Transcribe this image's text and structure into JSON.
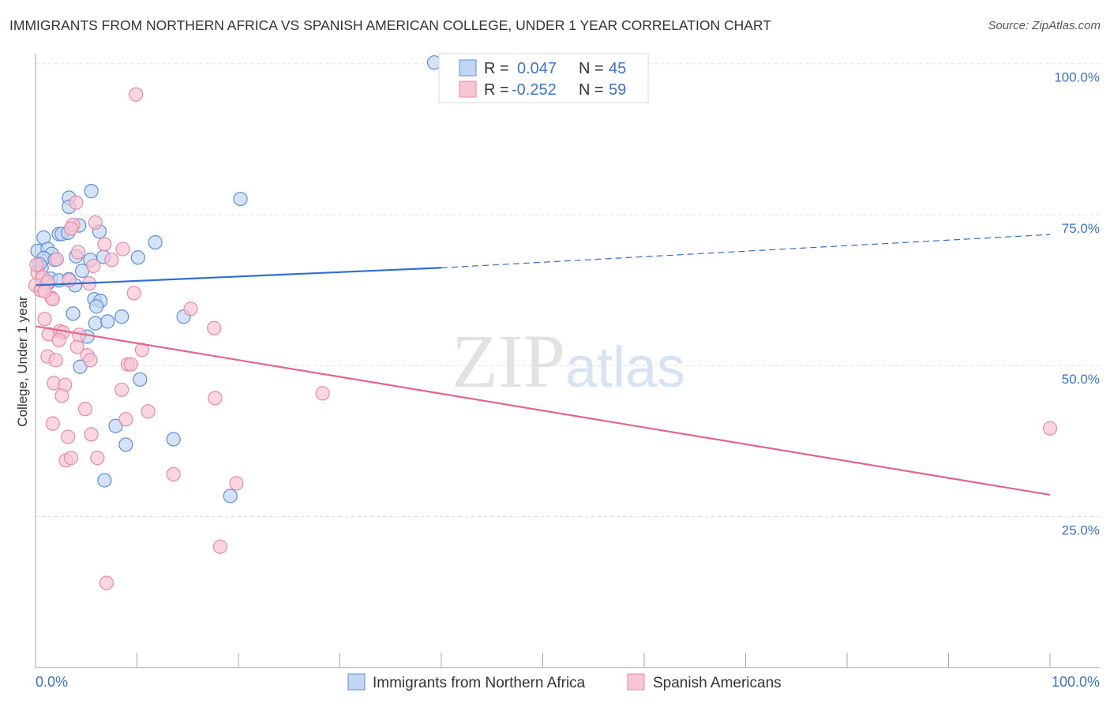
{
  "title": "IMMIGRANTS FROM NORTHERN AFRICA VS SPANISH AMERICAN COLLEGE, UNDER 1 YEAR CORRELATION CHART",
  "source": "Source: ZipAtlas.com",
  "watermark": "ZIPatlas",
  "chart_data": {
    "type": "scatter",
    "ylabel": "College, Under 1 year",
    "xlim": [
      0,
      100
    ],
    "ylim": [
      0,
      100
    ],
    "x_tick_labels": [
      "0.0%",
      "100.0%"
    ],
    "y_tick_labels": [
      {
        "v": 100,
        "label": "100.0%"
      },
      {
        "v": 75,
        "label": "75.0%"
      },
      {
        "v": 50,
        "label": "50.0%"
      },
      {
        "v": 25,
        "label": "25.0%"
      }
    ],
    "legend": [
      {
        "r_label": "R = ",
        "r": "0.047",
        "n_label": "N = ",
        "n": "45"
      },
      {
        "r_label": "R = ",
        "r": "-0.252",
        "n_label": "N = ",
        "n": "59"
      }
    ],
    "series": [
      {
        "name": "Immigrants from Northern Africa",
        "fill": "#c3d7f4",
        "stroke": "#5b8fdd",
        "line": "#2e6fd1",
        "trend": {
          "x0": 0,
          "y0": 63.3,
          "x1": 40,
          "y1": 66.2,
          "x_dash_end": 100,
          "y_dash_end": 71.7
        },
        "points": [
          [
            39.3,
            100.2
          ],
          [
            5.5,
            78.9
          ],
          [
            3.3,
            77.8
          ],
          [
            20.2,
            77.6
          ],
          [
            3.3,
            76.3
          ],
          [
            0.8,
            71.2
          ],
          [
            2.3,
            71.8
          ],
          [
            2.6,
            71.8
          ],
          [
            4.3,
            73.2
          ],
          [
            6.3,
            72.2
          ],
          [
            11.8,
            70.4
          ],
          [
            0.2,
            69.0
          ],
          [
            1.2,
            69.3
          ],
          [
            1.6,
            68.5
          ],
          [
            4.0,
            68.1
          ],
          [
            0.8,
            67.8
          ],
          [
            5.4,
            67.5
          ],
          [
            6.7,
            68.0
          ],
          [
            10.1,
            67.9
          ],
          [
            0.6,
            66.2
          ],
          [
            4.6,
            65.7
          ],
          [
            1.5,
            64.4
          ],
          [
            2.3,
            64.1
          ],
          [
            3.3,
            64.3
          ],
          [
            3.9,
            63.3
          ],
          [
            5.8,
            61.0
          ],
          [
            6.4,
            60.7
          ],
          [
            6.0,
            59.8
          ],
          [
            8.5,
            58.1
          ],
          [
            3.7,
            58.6
          ],
          [
            5.9,
            57.0
          ],
          [
            7.1,
            57.3
          ],
          [
            14.6,
            58.1
          ],
          [
            5.1,
            54.8
          ],
          [
            4.4,
            49.8
          ],
          [
            10.3,
            47.7
          ],
          [
            7.9,
            40.0
          ],
          [
            13.6,
            37.8
          ],
          [
            8.9,
            36.9
          ],
          [
            6.8,
            31.0
          ],
          [
            19.2,
            28.4
          ],
          [
            1.2,
            63.6
          ],
          [
            0.4,
            66.8
          ],
          [
            1.9,
            67.5
          ],
          [
            3.2,
            72.0
          ]
        ]
      },
      {
        "name": "Spanish Americans",
        "fill": "#f8c5d3",
        "stroke": "#e88aa8",
        "line": "#e5648e",
        "trend": {
          "x0": 0,
          "y0": 56.5,
          "x1": 100,
          "y1": 28.6
        },
        "points": [
          [
            9.9,
            94.9
          ],
          [
            4.0,
            77.0
          ],
          [
            5.9,
            73.7
          ],
          [
            3.7,
            73.3
          ],
          [
            3.5,
            72.7
          ],
          [
            6.8,
            70.1
          ],
          [
            4.2,
            68.8
          ],
          [
            8.6,
            69.3
          ],
          [
            7.5,
            67.5
          ],
          [
            2.1,
            67.6
          ],
          [
            5.7,
            66.5
          ],
          [
            0.2,
            65.4
          ],
          [
            0.7,
            64.6
          ],
          [
            1.2,
            63.9
          ],
          [
            3.3,
            64.1
          ],
          [
            5.3,
            63.6
          ],
          [
            0,
            63.3
          ],
          [
            1.6,
            61.2
          ],
          [
            1.7,
            61.0
          ],
          [
            9.7,
            62.0
          ],
          [
            15.3,
            59.4
          ],
          [
            0.9,
            57.7
          ],
          [
            17.6,
            56.2
          ],
          [
            1.3,
            55.2
          ],
          [
            2.4,
            55.7
          ],
          [
            2.7,
            55.5
          ],
          [
            2.3,
            54.2
          ],
          [
            4.1,
            53.1
          ],
          [
            10.5,
            52.6
          ],
          [
            1.2,
            51.5
          ],
          [
            5.1,
            51.7
          ],
          [
            2.0,
            50.9
          ],
          [
            5.4,
            50.9
          ],
          [
            9.1,
            50.2
          ],
          [
            9.4,
            50.2
          ],
          [
            8.5,
            46.0
          ],
          [
            1.8,
            47.1
          ],
          [
            2.9,
            46.8
          ],
          [
            2.6,
            45.0
          ],
          [
            28.3,
            45.4
          ],
          [
            17.7,
            44.6
          ],
          [
            4.9,
            42.8
          ],
          [
            11.1,
            42.4
          ],
          [
            1.7,
            40.4
          ],
          [
            8.9,
            41.1
          ],
          [
            100,
            39.6
          ],
          [
            3.2,
            38.2
          ],
          [
            5.5,
            38.6
          ],
          [
            3.0,
            34.3
          ],
          [
            3.5,
            34.7
          ],
          [
            6.1,
            34.7
          ],
          [
            13.6,
            32.0
          ],
          [
            19.8,
            30.5
          ],
          [
            18.2,
            20.0
          ],
          [
            7.0,
            14.0
          ],
          [
            0.1,
            66.7
          ],
          [
            0.5,
            62.5
          ],
          [
            0.9,
            62.3
          ],
          [
            4.3,
            55.1
          ]
        ]
      }
    ]
  }
}
